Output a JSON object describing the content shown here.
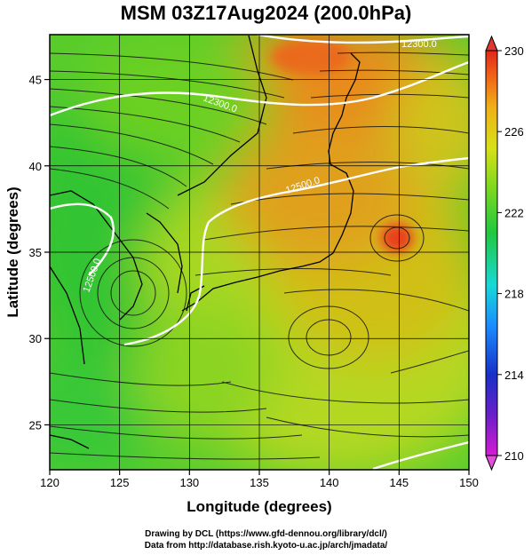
{
  "title": "MSM 03Z17Aug2024 (200.0hPa)",
  "map": {
    "xlabel": "Longitude (degrees)",
    "ylabel": "Latitude  (degrees)",
    "lon_range": [
      120,
      150
    ],
    "lat_range": [
      22.4,
      47.6
    ],
    "lon_ticks": [
      120,
      125,
      130,
      135,
      140,
      145,
      150
    ],
    "lat_ticks": [
      25,
      30,
      35,
      40,
      45
    ],
    "contour_labels": [
      "12300.0",
      "12300.0",
      "12500.0",
      "12500.0"
    ]
  },
  "colorbar": {
    "min": 210,
    "max": 230,
    "tick_labels": [
      "230",
      "226",
      "222",
      "218",
      "214",
      "210"
    ],
    "colors": [
      "#d41cd4",
      "#6a1fc8",
      "#1830c8",
      "#1a8cff",
      "#18d8d8",
      "#20c840",
      "#7cd820",
      "#d8e018",
      "#f0b018",
      "#f06018",
      "#e02818"
    ]
  },
  "credits": {
    "line1": "Drawing by DCL (https://www.gfd-dennou.org/library/dcl/)",
    "line2": "Data from http://database.rish.kyoto-u.ac.jp/arch/jmadata/"
  }
}
